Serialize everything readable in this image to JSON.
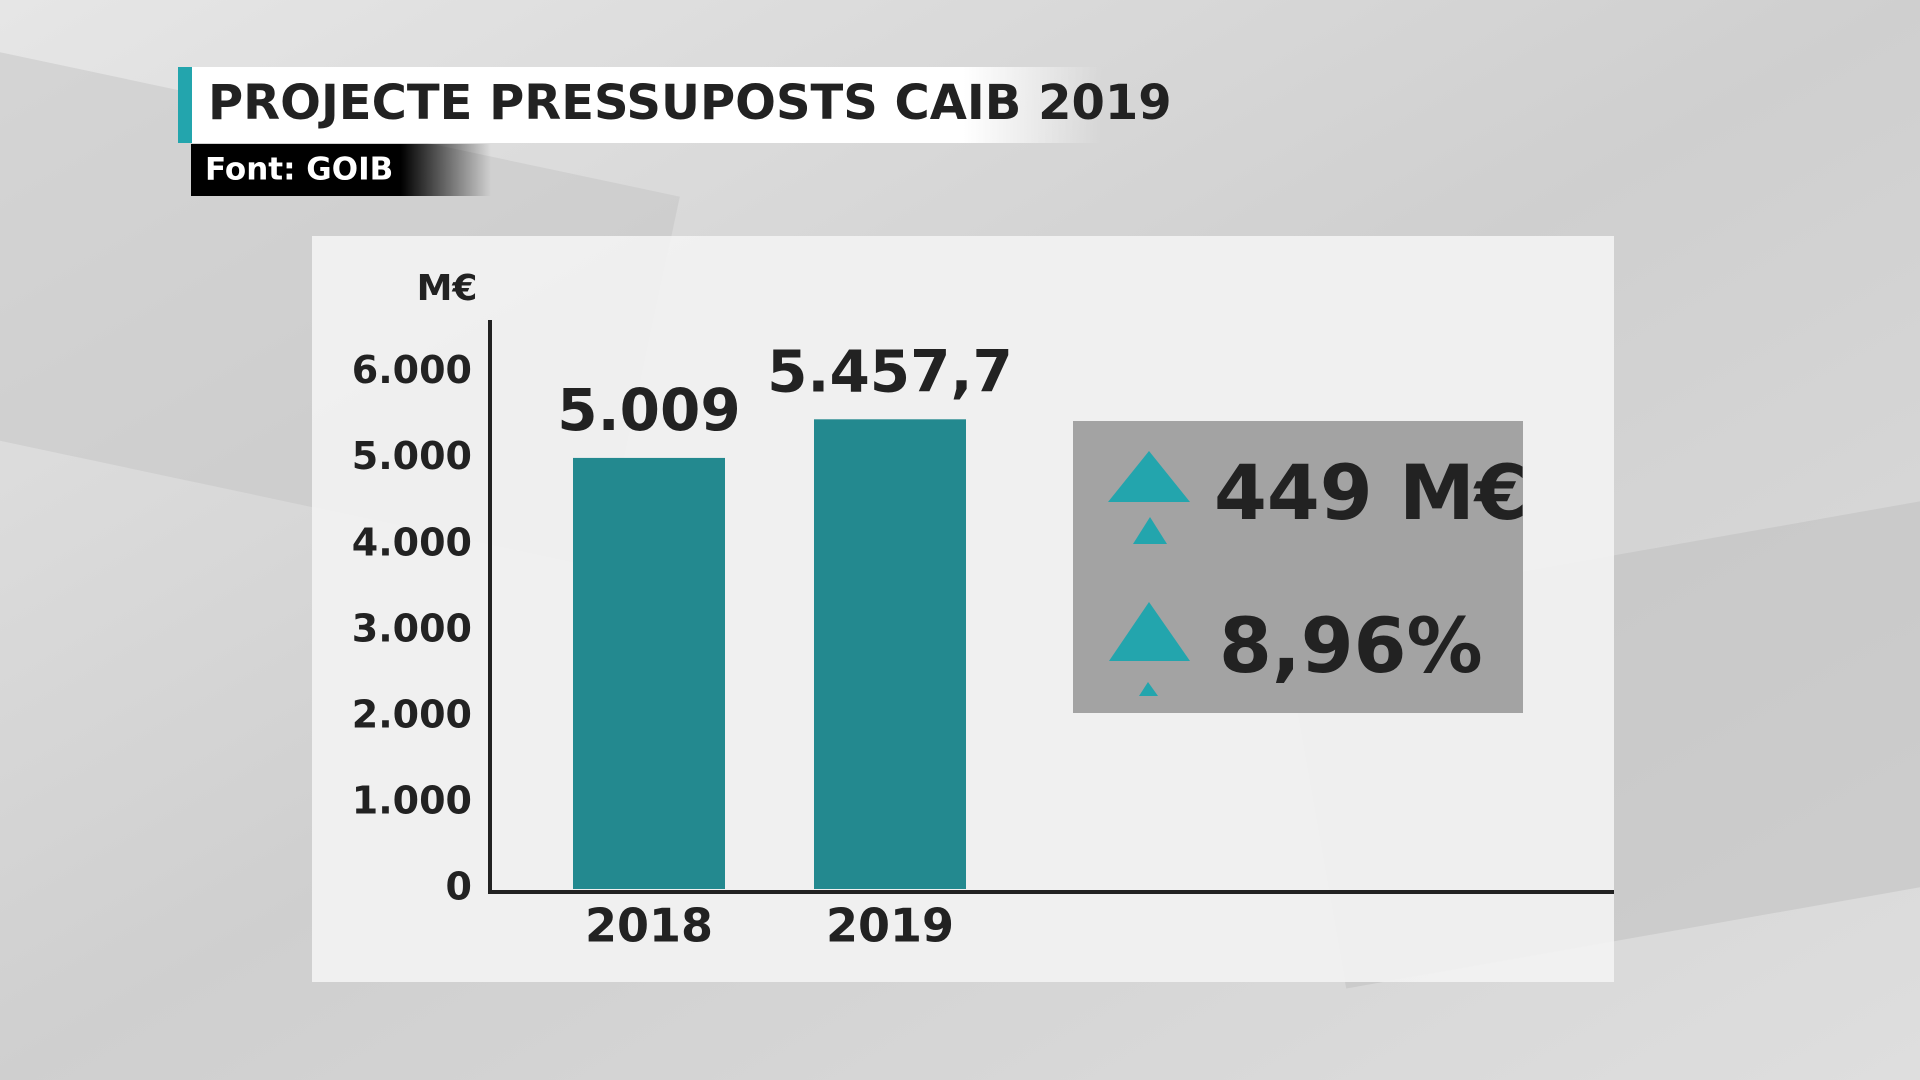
{
  "chart_data": {
    "type": "bar",
    "title": "PROJECTE PRESSUPOSTS CAIB 2019",
    "subtitle": "Font: GOIB",
    "y_label": "M€",
    "categories": [
      "2018",
      "2019"
    ],
    "values": [
      5009,
      5457.7
    ],
    "value_labels": [
      "5.009",
      "5.457,7"
    ],
    "color": "#23898f",
    "ylim": [
      0,
      6600
    ],
    "yticks": [
      0,
      {
        "value": 1000,
        "label": "1.000"
      },
      {
        "value": 2000,
        "label": "2.000"
      },
      {
        "value": 3000,
        "label": "3.000"
      },
      {
        "value": 4000,
        "label": "4.000"
      },
      {
        "value": 5000,
        "label": "5.000"
      },
      {
        "value": 6000,
        "label": "6.000"
      }
    ],
    "annotations": [
      "449 M€",
      "8,96%"
    ]
  }
}
